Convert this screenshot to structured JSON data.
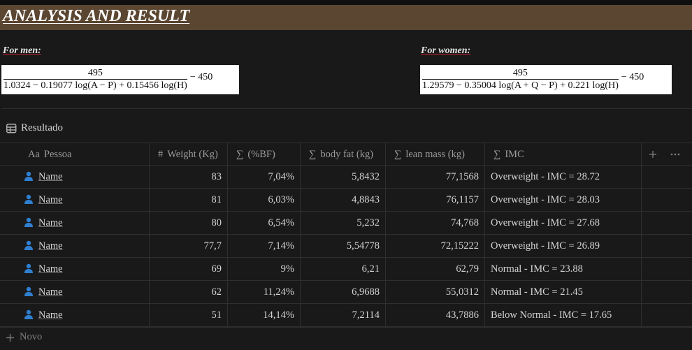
{
  "header": {
    "title": "ANALYSIS AND RESULT"
  },
  "formulas": [
    {
      "label": "For men:",
      "numerator": "495",
      "denominator": "1.0324 − 0.19077 log(A − P) + 0.15456 log(H)",
      "tail": "− 450"
    },
    {
      "label": "For women:",
      "numerator": "495",
      "denominator": "1.29579 − 0.35004 log(A + Q − P) + 0.221 log(H)",
      "tail": "− 450"
    }
  ],
  "table": {
    "title": "Resultado",
    "columns": [
      {
        "icon": "Aa",
        "label": "Pessoa"
      },
      {
        "icon": "#",
        "label": "Weight (Kg)"
      },
      {
        "icon": "∑",
        "label": "(%BF)"
      },
      {
        "icon": "∑",
        "label": "body fat (kg)"
      },
      {
        "icon": "∑",
        "label": "lean mass (kg)"
      },
      {
        "icon": "∑",
        "label": "IMC"
      }
    ],
    "rows": [
      [
        "Name",
        "83",
        "7,04%",
        "5,8432",
        "77,1568",
        "Overweight - IMC = 28.72"
      ],
      [
        "Name",
        "81",
        "6,03%",
        "4,8843",
        "76,1157",
        "Overweight - IMC = 28.03"
      ],
      [
        "Name",
        "80",
        "6,54%",
        "5,232",
        "74,768",
        "Overweight - IMC = 27.68"
      ],
      [
        "Name",
        "77,7",
        "7,14%",
        "5,54778",
        "72,15222",
        "Overweight - IMC = 26.89"
      ],
      [
        "Name",
        "69",
        "9%",
        "6,21",
        "62,79",
        "Normal - IMC = 23.88"
      ],
      [
        "Name",
        "62",
        "11,24%",
        "6,9688",
        "55,0312",
        "Normal - IMC = 21.45"
      ],
      [
        "Name",
        "51",
        "14,14%",
        "7,2114",
        "43,7886",
        "Below Normal - IMC = 17.65"
      ]
    ],
    "new_row": "Novo"
  }
}
